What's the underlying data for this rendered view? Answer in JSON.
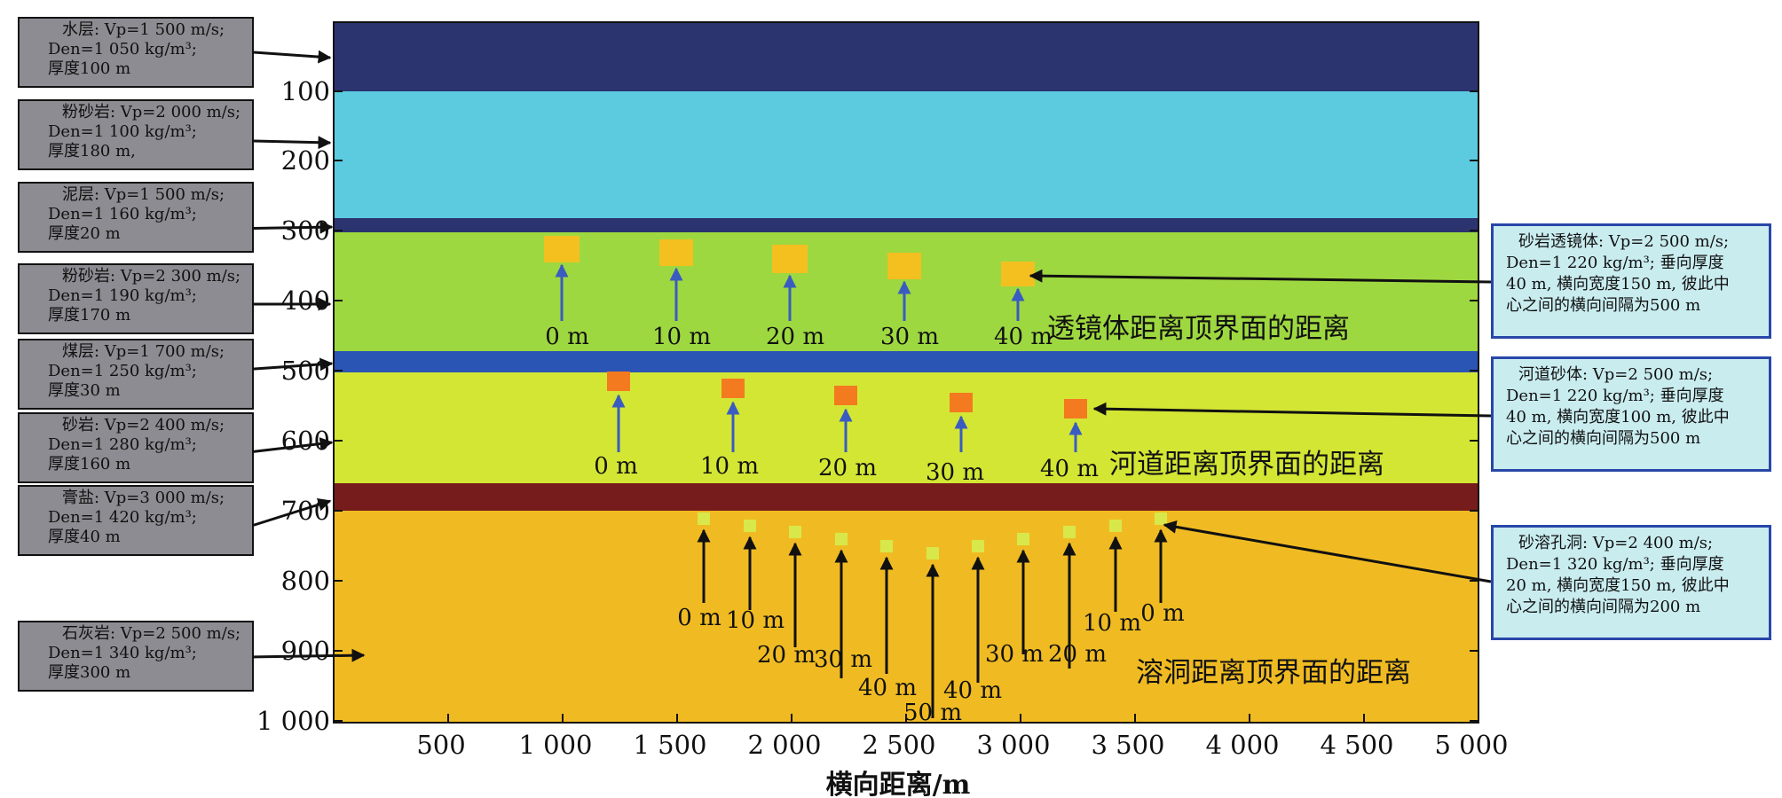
{
  "x_axis": {
    "label": "横向距离/m",
    "ticks": [
      "500",
      "1 000",
      "1 500",
      "2 000",
      "2 500",
      "3 000",
      "3 500",
      "4 000",
      "4 500",
      "5 000"
    ]
  },
  "y_axis": {
    "ticks": [
      "100",
      "200",
      "300",
      "400",
      "500",
      "600",
      "700",
      "800",
      "900",
      "1 000"
    ]
  },
  "layers": [
    {
      "name": "水层",
      "color": "#2c3470"
    },
    {
      "name": "粉砂岩",
      "color": "#5ccbe0"
    },
    {
      "name": "泥层",
      "color": "#2c3470"
    },
    {
      "name": "粉砂岩",
      "color": "#9ed840"
    },
    {
      "name": "煤层",
      "color": "#2a55b4"
    },
    {
      "name": "砂岩",
      "color": "#d3e634"
    },
    {
      "name": "膏盐",
      "color": "#771c1c"
    },
    {
      "name": "石灰岩",
      "color": "#f0bb22"
    }
  ],
  "left_boxes": [
    {
      "lines": [
        "水层: Vp=1 500 m/s;",
        "Den=1 050 kg/m³;",
        "厚度100 m"
      ]
    },
    {
      "lines": [
        "粉砂岩: Vp=2 000 m/s;",
        "Den=1 100 kg/m³;",
        "厚度180 m,"
      ]
    },
    {
      "lines": [
        "泥层: Vp=1 500 m/s;",
        "Den=1 160 kg/m³;",
        "厚度20 m"
      ]
    },
    {
      "lines": [
        "粉砂岩: Vp=2 300 m/s;",
        "Den=1 190 kg/m³;",
        "厚度170 m"
      ]
    },
    {
      "lines": [
        "煤层: Vp=1 700 m/s;",
        "Den=1 250 kg/m³;",
        "厚度30 m"
      ]
    },
    {
      "lines": [
        "砂岩: Vp=2 400 m/s;",
        "Den=1 280 kg/m³;",
        "厚度160 m"
      ]
    },
    {
      "lines": [
        "膏盐: Vp=3 000 m/s;",
        "Den=1 420 kg/m³;",
        "厚度40 m"
      ]
    },
    {
      "lines": [
        "石灰岩: Vp=2 500 m/s;",
        "Den=1 340 kg/m³;",
        "厚度300 m"
      ]
    }
  ],
  "right_boxes": [
    {
      "lines": [
        "砂岩透镜体: Vp=2 500 m/s;",
        "Den=1 220 kg/m³; 垂向厚度",
        "40 m, 横向宽度150 m, 彼此中",
        "心之间的横向间隔为500 m"
      ]
    },
    {
      "lines": [
        "河道砂体: Vp=2 500 m/s;",
        "Den=1 220 kg/m³; 垂向厚度",
        "40 m, 横向宽度100 m, 彼此中",
        "心之间的横向间隔为500 m"
      ]
    },
    {
      "lines": [
        "砂溶孔洞: Vp=2 400 m/s;",
        "Den=1 320 kg/m³; 垂向厚度",
        "20 m, 横向宽度150 m, 彼此中",
        "心之间的横向间隔为200 m"
      ]
    }
  ],
  "lens": {
    "caption": "透镜体距离顶界面的距离",
    "labels": [
      "0 m",
      "10 m",
      "20 m",
      "30 m",
      "40 m"
    ],
    "color": "#f3c020"
  },
  "channel": {
    "caption": "河道距离顶界面的距离",
    "labels": [
      "0 m",
      "10 m",
      "20 m",
      "30 m",
      "40 m"
    ],
    "color": "#f47a20"
  },
  "cave": {
    "caption": "溶洞距离顶界面的距离",
    "labels": [
      "0 m",
      "10 m",
      "20 m",
      "30 m",
      "40 m",
      "50 m",
      "40 m",
      "30 m",
      "20 m",
      "10 m",
      "0 m"
    ],
    "color": "#d8e84a"
  },
  "colors": {
    "blue_arrow": "#3a5cc0",
    "black_arrow": "#111111"
  }
}
